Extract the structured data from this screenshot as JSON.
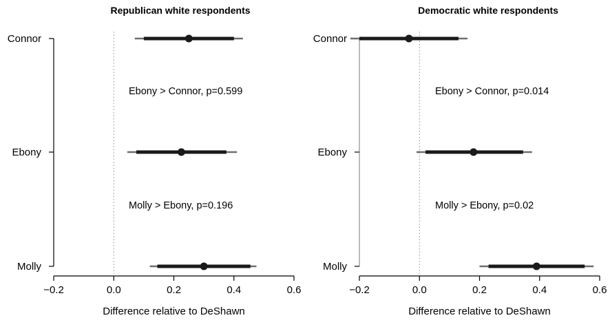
{
  "chart_data": [
    {
      "type": "forest",
      "title": "Republican white respondents",
      "xlabel": "Difference relative to DeShawn",
      "xlim": [
        -0.2,
        0.6
      ],
      "xticks": [
        "−0.2",
        "0.0",
        "0.2",
        "0.4",
        "0.6"
      ],
      "xtick_values": [
        -0.2,
        0.0,
        0.2,
        0.4,
        0.6
      ],
      "reference_line": 0.0,
      "categories": [
        "Connor",
        "Ebony",
        "Molly"
      ],
      "estimates": [
        0.25,
        0.225,
        0.3
      ],
      "ci_inner": [
        [
          0.1,
          0.4
        ],
        [
          0.075,
          0.375
        ],
        [
          0.145,
          0.455
        ]
      ],
      "ci_outer": [
        [
          0.07,
          0.43
        ],
        [
          0.045,
          0.41
        ],
        [
          0.12,
          0.475
        ]
      ],
      "annotations": [
        "Ebony > Connor, p=0.599",
        "Molly > Ebony, p=0.196"
      ]
    },
    {
      "type": "forest",
      "title": "Democratic white respondents",
      "xlabel": "Difference relative to DeShawn",
      "xlim": [
        -0.2,
        0.6
      ],
      "xticks": [
        "−0.2",
        "0.0",
        "0.2",
        "0.4",
        "0.6"
      ],
      "xtick_values": [
        -0.2,
        0.0,
        0.2,
        0.4,
        0.6
      ],
      "reference_line": 0.0,
      "categories": [
        "Connor",
        "Ebony",
        "Molly"
      ],
      "estimates": [
        -0.035,
        0.18,
        0.39
      ],
      "ci_inner": [
        [
          -0.2,
          0.13
        ],
        [
          0.02,
          0.345
        ],
        [
          0.23,
          0.55
        ]
      ],
      "ci_outer": [
        [
          -0.23,
          0.16
        ],
        [
          -0.01,
          0.375
        ],
        [
          0.2,
          0.58
        ]
      ],
      "annotations": [
        "Ebony > Connor, p=0.014",
        "Molly > Ebony, p=0.02"
      ]
    }
  ],
  "colors": {
    "point": "#1a1a1a",
    "inner_ci": "#1a1a1a",
    "outer_ci": "#6e6e6e",
    "axis": "#000000",
    "reference": "#888888"
  }
}
